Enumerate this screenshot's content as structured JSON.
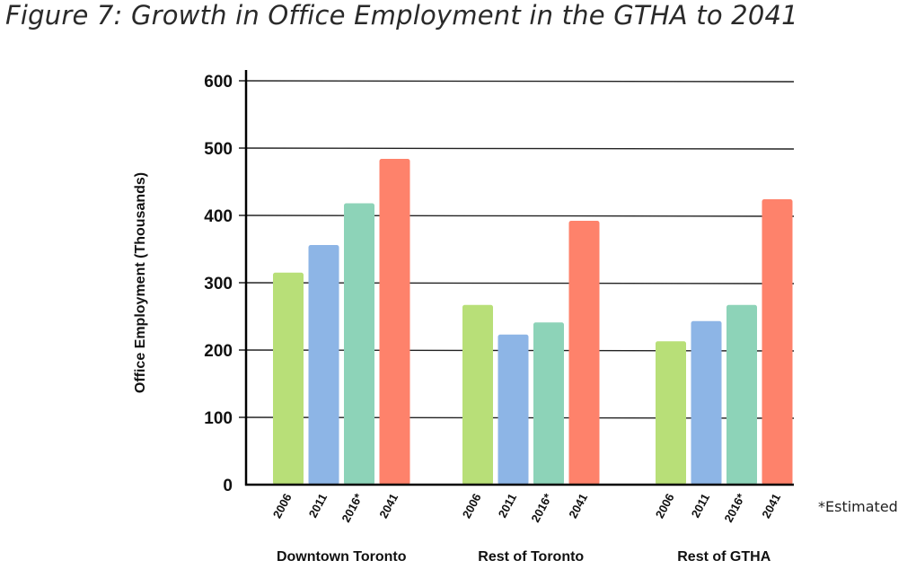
{
  "title": "Figure 7: Growth in Office Employment in the GTHA to 2041",
  "note": "*Estimated",
  "chart_data": {
    "type": "bar",
    "title": "Figure 7: Growth in Office Employment in the GTHA to 2041",
    "xlabel": "",
    "ylabel": "Office Employment (Thousands)",
    "ylim": [
      0,
      600
    ],
    "yticks": [
      "0",
      "100",
      "200",
      "300",
      "400",
      "500",
      "600"
    ],
    "grid": true,
    "categories": [
      "Downtown Toronto",
      "Rest of Toronto",
      "Rest of GTHA"
    ],
    "series": [
      {
        "name": "2006",
        "color": "#b8df78",
        "values": [
          315,
          267,
          213
        ]
      },
      {
        "name": "2011",
        "color": "#8db5e6",
        "values": [
          356,
          223,
          243
        ]
      },
      {
        "name": "2016*",
        "color": "#8dd3b8",
        "values": [
          418,
          241,
          267
        ]
      },
      {
        "name": "2041",
        "color": "#fe826b",
        "values": [
          484,
          392,
          424
        ]
      }
    ],
    "annotations": [
      "*Estimated"
    ]
  }
}
